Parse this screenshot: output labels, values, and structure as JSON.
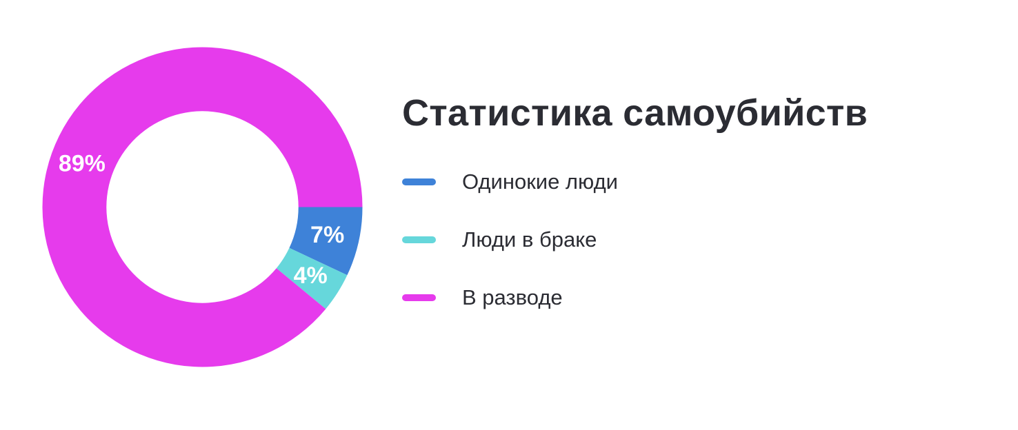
{
  "title": "Статистика самоубийств",
  "legend": [
    {
      "label": "Одинокие люди",
      "color": "#3E82D8"
    },
    {
      "label": "Люди в браке",
      "color": "#66D7DB"
    },
    {
      "label": "В разводе",
      "color": "#E63BEC"
    }
  ],
  "chart_data": {
    "type": "pie",
    "title": "Статистика самоубийств",
    "categories": [
      "Одинокие люди",
      "Люди в браке",
      "В разводе"
    ],
    "values": [
      7,
      4,
      89
    ],
    "unit": "%",
    "slice_labels": [
      "7%",
      "4%",
      "89%"
    ],
    "colors": [
      "#3E82D8",
      "#66D7DB",
      "#E63BEC"
    ],
    "donut": true,
    "inner_radius_ratio": 0.6,
    "start_angle_deg_clockwise_from_3oclock": 0,
    "direction": "clockwise",
    "legend_position": "right",
    "slice_label_color": "#FFFFFF",
    "grid": false
  },
  "colors": {
    "background": "#FFFFFF",
    "text": "#2B2C33"
  }
}
